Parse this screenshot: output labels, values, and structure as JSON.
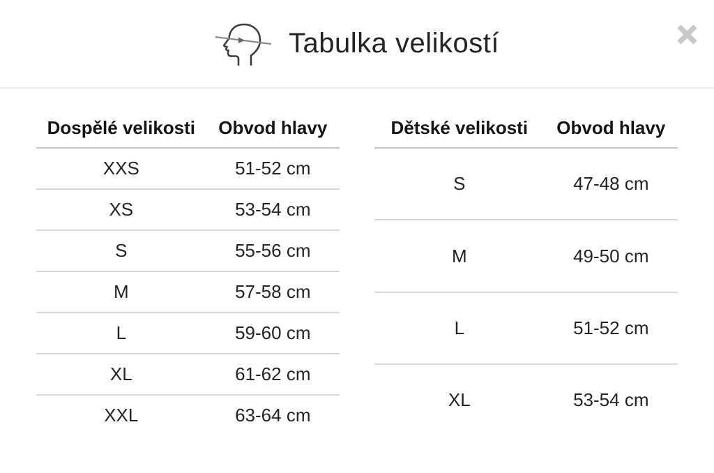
{
  "modal": {
    "title": "Tabulka velikostí",
    "icons": {
      "header_icon": "head-circumference-icon",
      "close_icon": "close-x-icon"
    },
    "colors": {
      "text": "#242424",
      "divider": "#ececec",
      "row_line": "#d8d8d8",
      "header_line": "#c4c4c4",
      "close_x": "#c9c9c9",
      "icon_stroke": "#3d3d3d",
      "icon_measure_line": "#8c8c8c"
    }
  },
  "tables": {
    "adult": {
      "headers": [
        "Dospělé velikosti",
        "Obvod hlavy"
      ],
      "rows": [
        [
          "XXS",
          "51-52 cm"
        ],
        [
          "XS",
          "53-54 cm"
        ],
        [
          "S",
          "55-56 cm"
        ],
        [
          "M",
          "57-58 cm"
        ],
        [
          "L",
          "59-60 cm"
        ],
        [
          "XL",
          "61-62 cm"
        ],
        [
          "XXL",
          "63-64 cm"
        ]
      ]
    },
    "children": {
      "headers": [
        "Dětské velikosti",
        "Obvod hlavy"
      ],
      "rows": [
        [
          "S",
          "47-48 cm"
        ],
        [
          "M",
          "49-50 cm"
        ],
        [
          "L",
          "51-52 cm"
        ],
        [
          "XL",
          "53-54 cm"
        ]
      ]
    }
  }
}
